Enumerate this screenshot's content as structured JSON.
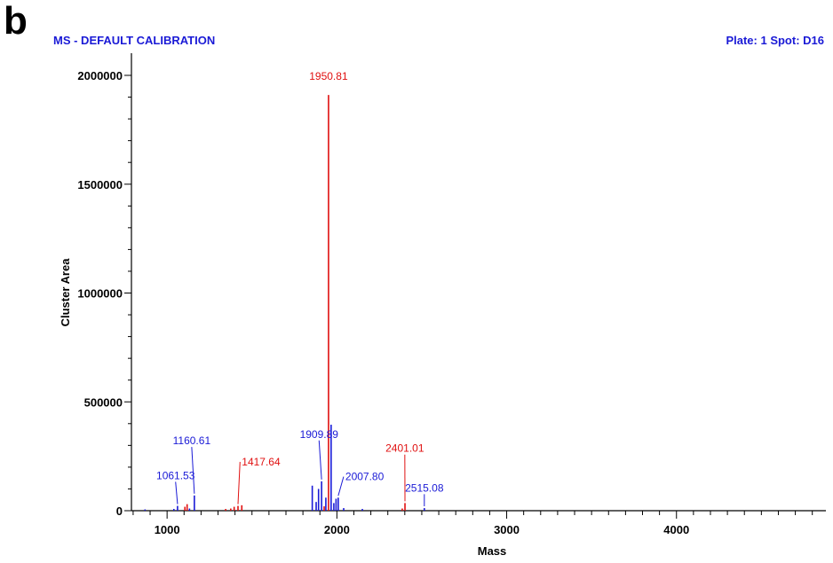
{
  "panel_letter": "b",
  "header": {
    "left": "MS - DEFAULT CALIBRATION",
    "right": "Plate: 1 Spot: D16",
    "color": "#1a1ad6"
  },
  "chart_data": {
    "type": "bar",
    "xlabel": "Mass",
    "ylabel": "Cluster Area",
    "xlim": [
      790,
      4880
    ],
    "ylim": [
      0,
      2000000
    ],
    "x_ticks": [
      1000,
      2000,
      3000,
      4000
    ],
    "x_tick_labels": [
      "1000",
      "2000",
      "3000",
      "4000"
    ],
    "y_ticks": [
      0,
      500000,
      1000000,
      1500000,
      2000000
    ],
    "y_tick_labels": [
      "0",
      "500000",
      "1000000",
      "1500000",
      "2000000"
    ],
    "grid": false,
    "colors": {
      "blue": "#1a1ad6",
      "red": "#e01010"
    },
    "peaks": [
      {
        "x": 870,
        "y": 6000,
        "color": "blue"
      },
      {
        "x": 1040,
        "y": 8000,
        "color": "blue"
      },
      {
        "x": 1061.53,
        "y": 22000,
        "color": "blue"
      },
      {
        "x": 1105,
        "y": 18000,
        "color": "red"
      },
      {
        "x": 1118,
        "y": 30000,
        "color": "red"
      },
      {
        "x": 1132,
        "y": 10000,
        "color": "blue"
      },
      {
        "x": 1160.61,
        "y": 70000,
        "color": "blue"
      },
      {
        "x": 1345,
        "y": 8000,
        "color": "red"
      },
      {
        "x": 1375,
        "y": 10000,
        "color": "red"
      },
      {
        "x": 1395,
        "y": 18000,
        "color": "red"
      },
      {
        "x": 1417.64,
        "y": 22000,
        "color": "red"
      },
      {
        "x": 1440,
        "y": 25000,
        "color": "red"
      },
      {
        "x": 1855,
        "y": 115000,
        "color": "blue"
      },
      {
        "x": 1878,
        "y": 40000,
        "color": "blue"
      },
      {
        "x": 1892,
        "y": 100000,
        "color": "blue"
      },
      {
        "x": 1909.89,
        "y": 135000,
        "color": "blue"
      },
      {
        "x": 1925,
        "y": 20000,
        "color": "red"
      },
      {
        "x": 1935,
        "y": 60000,
        "color": "blue"
      },
      {
        "x": 1950.81,
        "y": 1910000,
        "color": "red"
      },
      {
        "x": 1966,
        "y": 395000,
        "color": "blue"
      },
      {
        "x": 1982,
        "y": 35000,
        "color": "blue"
      },
      {
        "x": 1995,
        "y": 55000,
        "color": "blue"
      },
      {
        "x": 2007.8,
        "y": 60000,
        "color": "blue"
      },
      {
        "x": 2040,
        "y": 12000,
        "color": "blue"
      },
      {
        "x": 2150,
        "y": 8000,
        "color": "blue"
      },
      {
        "x": 2385,
        "y": 10000,
        "color": "red"
      },
      {
        "x": 2401.01,
        "y": 35000,
        "color": "red"
      },
      {
        "x": 2515.08,
        "y": 12000,
        "color": "blue"
      }
    ],
    "annotations": [
      {
        "text": "1950.81",
        "x": 1950.81,
        "y": 1910000,
        "color": "red",
        "lx": 1950.81,
        "ly": 1980000,
        "anchor": "middle"
      },
      {
        "text": "1160.61",
        "x": 1160.61,
        "y": 70000,
        "color": "blue",
        "lx": 1145,
        "ly": 305000,
        "anchor": "middle"
      },
      {
        "text": "1061.53",
        "x": 1061.53,
        "y": 22000,
        "color": "blue",
        "lx": 1050,
        "ly": 145000,
        "anchor": "middle"
      },
      {
        "text": "1417.64",
        "x": 1417.64,
        "y": 22000,
        "color": "red",
        "lx": 1440,
        "ly": 208000,
        "anchor": "start"
      },
      {
        "text": "1909.89",
        "x": 1909.89,
        "y": 135000,
        "color": "blue",
        "lx": 1895,
        "ly": 335000,
        "anchor": "middle"
      },
      {
        "text": "2007.80",
        "x": 2007.8,
        "y": 60000,
        "color": "blue",
        "lx": 2050,
        "ly": 140000,
        "anchor": "start"
      },
      {
        "text": "2401.01",
        "x": 2401.01,
        "y": 35000,
        "color": "red",
        "lx": 2400,
        "ly": 270000,
        "anchor": "middle"
      },
      {
        "text": "2515.08",
        "x": 2515.08,
        "y": 12000,
        "color": "blue",
        "lx": 2515,
        "ly": 88000,
        "anchor": "middle"
      }
    ]
  }
}
